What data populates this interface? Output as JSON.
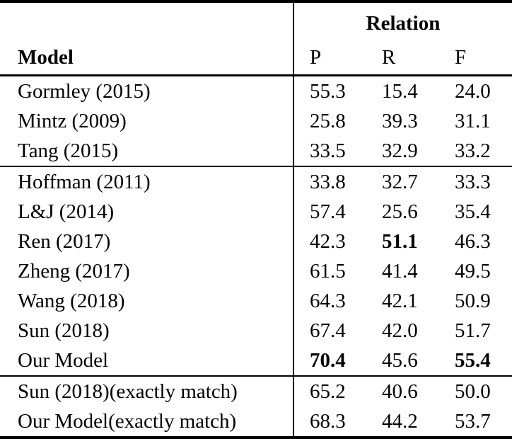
{
  "colors": {
    "background": "#ffffff",
    "text": "#000000",
    "rule": "#000000"
  },
  "chart_data": {
    "type": "table",
    "header": {
      "model_label": "Model",
      "group_label": "Relation",
      "columns": [
        "P",
        "R",
        "F"
      ]
    },
    "groups": [
      {
        "rows": [
          {
            "model": "Gormley (2015)",
            "values": [
              "55.3",
              "15.4",
              "24.0"
            ],
            "bold_values": [
              false,
              false,
              false
            ]
          },
          {
            "model": "Mintz (2009)",
            "values": [
              "25.8",
              "39.3",
              "31.1"
            ],
            "bold_values": [
              false,
              false,
              false
            ]
          },
          {
            "model": "Tang (2015)",
            "values": [
              "33.5",
              "32.9",
              "33.2"
            ],
            "bold_values": [
              false,
              false,
              false
            ]
          }
        ]
      },
      {
        "rows": [
          {
            "model": "Hoffman (2011)",
            "values": [
              "33.8",
              "32.7",
              "33.3"
            ],
            "bold_values": [
              false,
              false,
              false
            ]
          },
          {
            "model": "L&J (2014)",
            "values": [
              "57.4",
              "25.6",
              "35.4"
            ],
            "bold_values": [
              false,
              false,
              false
            ]
          },
          {
            "model": "Ren (2017)",
            "values": [
              "42.3",
              "51.1",
              "46.3"
            ],
            "bold_values": [
              false,
              true,
              false
            ]
          },
          {
            "model": "Zheng (2017)",
            "values": [
              "61.5",
              "41.4",
              "49.5"
            ],
            "bold_values": [
              false,
              false,
              false
            ]
          },
          {
            "model": "Wang (2018)",
            "values": [
              "64.3",
              "42.1",
              "50.9"
            ],
            "bold_values": [
              false,
              false,
              false
            ]
          },
          {
            "model": "Sun (2018)",
            "values": [
              "67.4",
              "42.0",
              "51.7"
            ],
            "bold_values": [
              false,
              false,
              false
            ]
          },
          {
            "model": "Our Model",
            "values": [
              "70.4",
              "45.6",
              "55.4"
            ],
            "bold_values": [
              true,
              false,
              true
            ]
          }
        ]
      },
      {
        "rows": [
          {
            "model": "Sun (2018)(exactly match)",
            "values": [
              "65.2",
              "40.6",
              "50.0"
            ],
            "bold_values": [
              false,
              false,
              false
            ]
          },
          {
            "model": "Our Model(exactly match)",
            "values": [
              "68.3",
              "44.2",
              "53.7"
            ],
            "bold_values": [
              false,
              false,
              false
            ]
          }
        ]
      }
    ]
  }
}
